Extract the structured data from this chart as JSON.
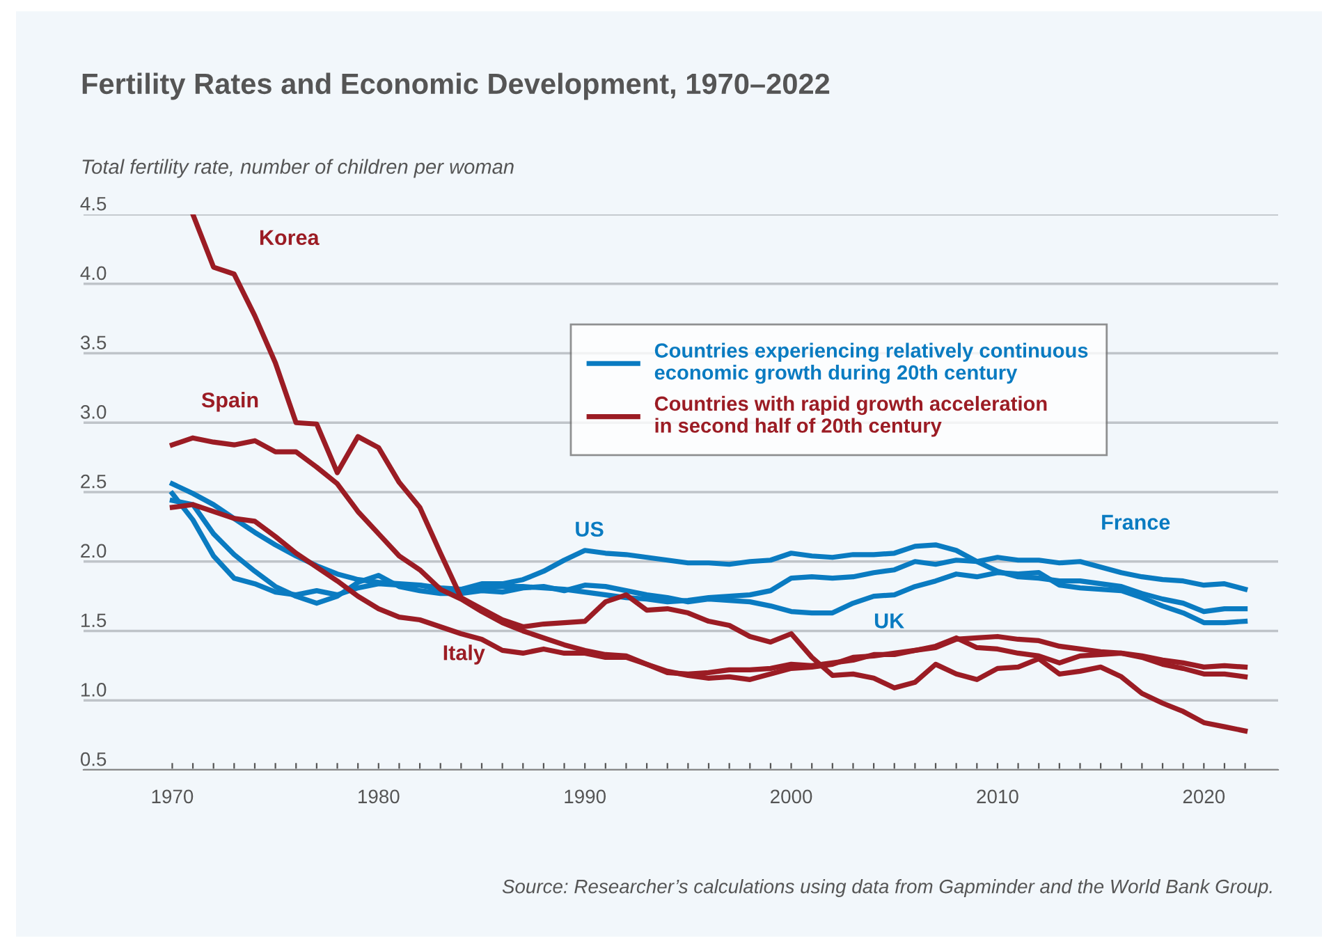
{
  "chart_data": {
    "type": "line",
    "title": "Fertility Rates and Economic Development, 1970–2022",
    "ylabel": "Total fertility rate, number of children per woman",
    "annotations": [
      "Countries experiencing relatively continuous economic growth during 20th century",
      "Countries with rapid growth acceleration in second half of 20th century",
      "Source: Researcher’s calculations using data from Gapminder and the World Bank Group."
    ],
    "x": [
      1970,
      1971,
      1972,
      1973,
      1974,
      1975,
      1976,
      1977,
      1978,
      1979,
      1980,
      1981,
      1982,
      1983,
      1984,
      1985,
      1986,
      1987,
      1988,
      1989,
      1990,
      1991,
      1992,
      1993,
      1994,
      1995,
      1996,
      1997,
      1998,
      1999,
      2000,
      2001,
      2002,
      2003,
      2004,
      2005,
      2006,
      2007,
      2008,
      2009,
      2010,
      2011,
      2012,
      2013,
      2014,
      2015,
      2016,
      2017,
      2018,
      2019,
      2020,
      2021,
      2022
    ],
    "series": [
      {
        "name": "US",
        "color": "#0a7bc1",
        "values": [
          2.49,
          2.3,
          2.04,
          1.88,
          1.84,
          1.78,
          1.76,
          1.79,
          1.76,
          1.81,
          1.84,
          1.83,
          1.83,
          1.8,
          1.8,
          1.84,
          1.84,
          1.87,
          1.93,
          2.01,
          2.08,
          2.06,
          2.05,
          2.03,
          2.01,
          1.99,
          1.99,
          1.98,
          2.0,
          2.01,
          2.06,
          2.04,
          2.03,
          2.05,
          2.05,
          2.06,
          2.11,
          2.12,
          2.08,
          2.0,
          1.93,
          1.89,
          1.88,
          1.86,
          1.86,
          1.84,
          1.82,
          1.77,
          1.73,
          1.7,
          1.64,
          1.66,
          1.66
        ]
      },
      {
        "name": "France",
        "color": "#0a7bc1",
        "values": [
          2.56,
          2.49,
          2.41,
          2.31,
          2.21,
          2.12,
          2.04,
          1.97,
          1.91,
          1.87,
          1.85,
          1.84,
          1.83,
          1.81,
          1.8,
          1.81,
          1.82,
          1.82,
          1.81,
          1.8,
          1.78,
          1.76,
          1.74,
          1.73,
          1.71,
          1.72,
          1.74,
          1.75,
          1.76,
          1.79,
          1.88,
          1.89,
          1.88,
          1.89,
          1.92,
          1.94,
          2.0,
          1.98,
          2.01,
          2.0,
          2.03,
          2.01,
          2.01,
          1.99,
          2.0,
          1.96,
          1.92,
          1.89,
          1.87,
          1.86,
          1.83,
          1.84,
          1.8
        ]
      },
      {
        "name": "UK",
        "color": "#0a7bc1",
        "values": [
          2.44,
          2.41,
          2.2,
          2.05,
          1.93,
          1.82,
          1.75,
          1.7,
          1.75,
          1.85,
          1.9,
          1.82,
          1.79,
          1.77,
          1.77,
          1.79,
          1.78,
          1.81,
          1.82,
          1.79,
          1.83,
          1.82,
          1.79,
          1.76,
          1.74,
          1.71,
          1.73,
          1.72,
          1.71,
          1.68,
          1.64,
          1.63,
          1.63,
          1.7,
          1.75,
          1.76,
          1.82,
          1.86,
          1.91,
          1.89,
          1.92,
          1.91,
          1.92,
          1.83,
          1.81,
          1.8,
          1.79,
          1.74,
          1.68,
          1.63,
          1.56,
          1.56,
          1.57
        ]
      },
      {
        "name": "Korea",
        "color": "#9b1c24",
        "values": [
          null,
          4.5,
          4.12,
          4.07,
          3.77,
          3.43,
          3.0,
          2.99,
          2.64,
          2.9,
          2.82,
          2.57,
          2.39,
          2.06,
          1.74,
          1.66,
          1.58,
          1.53,
          1.55,
          1.56,
          1.57,
          1.71,
          1.76,
          1.65,
          1.66,
          1.63,
          1.57,
          1.54,
          1.46,
          1.42,
          1.48,
          1.31,
          1.18,
          1.19,
          1.16,
          1.09,
          1.13,
          1.26,
          1.19,
          1.15,
          1.23,
          1.24,
          1.3,
          1.19,
          1.21,
          1.24,
          1.17,
          1.05,
          0.98,
          0.92,
          0.84,
          0.81,
          0.78
        ]
      },
      {
        "name": "Spain",
        "color": "#9b1c24",
        "values": [
          2.84,
          2.89,
          2.86,
          2.84,
          2.87,
          2.79,
          2.79,
          2.68,
          2.56,
          2.36,
          2.2,
          2.04,
          1.94,
          1.8,
          1.73,
          1.64,
          1.56,
          1.5,
          1.45,
          1.4,
          1.36,
          1.33,
          1.32,
          1.26,
          1.21,
          1.18,
          1.16,
          1.17,
          1.15,
          1.19,
          1.23,
          1.24,
          1.26,
          1.31,
          1.32,
          1.34,
          1.36,
          1.39,
          1.45,
          1.38,
          1.37,
          1.34,
          1.32,
          1.27,
          1.32,
          1.33,
          1.34,
          1.31,
          1.26,
          1.23,
          1.19,
          1.19,
          1.17
        ]
      },
      {
        "name": "Italy",
        "color": "#9b1c24",
        "values": [
          2.39,
          2.41,
          2.36,
          2.31,
          2.29,
          2.18,
          2.06,
          1.96,
          1.86,
          1.75,
          1.66,
          1.6,
          1.58,
          1.53,
          1.48,
          1.44,
          1.36,
          1.34,
          1.37,
          1.34,
          1.34,
          1.31,
          1.31,
          1.26,
          1.2,
          1.19,
          1.2,
          1.22,
          1.22,
          1.23,
          1.26,
          1.25,
          1.27,
          1.29,
          1.33,
          1.33,
          1.36,
          1.38,
          1.44,
          1.45,
          1.46,
          1.44,
          1.43,
          1.39,
          1.37,
          1.35,
          1.34,
          1.32,
          1.29,
          1.27,
          1.24,
          1.25,
          1.24
        ]
      }
    ],
    "xlim": [
      1965.7,
      2023.6
    ],
    "ylim": [
      0.5,
      4.5
    ],
    "xticks": [
      1970,
      {
        "value": 1971,
        "label": null
      },
      {
        "value": 1972,
        "label": null
      },
      {
        "value": 1973,
        "label": null
      },
      {
        "value": 1974,
        "label": null
      },
      {
        "value": 1975,
        "label": null
      },
      {
        "value": 1976,
        "label": null
      },
      {
        "value": 1977,
        "label": null
      },
      {
        "value": 1978,
        "label": null
      },
      {
        "value": 1979,
        "label": null
      },
      1980,
      {
        "value": 1981,
        "label": null
      },
      {
        "value": 1982,
        "label": null
      },
      {
        "value": 1983,
        "label": null
      },
      {
        "value": 1984,
        "label": null
      },
      {
        "value": 1985,
        "label": null
      },
      {
        "value": 1986,
        "label": null
      },
      {
        "value": 1987,
        "label": null
      },
      {
        "value": 1988,
        "label": null
      },
      {
        "value": 1989,
        "label": null
      },
      1990,
      {
        "value": 1991,
        "label": null
      },
      {
        "value": 1992,
        "label": null
      },
      {
        "value": 1993,
        "label": null
      },
      {
        "value": 1994,
        "label": null
      },
      {
        "value": 1995,
        "label": null
      },
      {
        "value": 1996,
        "label": null
      },
      {
        "value": 1997,
        "label": null
      },
      {
        "value": 1998,
        "label": null
      },
      {
        "value": 1999,
        "label": null
      },
      2000,
      {
        "value": 2001,
        "label": null
      },
      {
        "value": 2002,
        "label": null
      },
      {
        "value": 2003,
        "label": null
      },
      {
        "value": 2004,
        "label": null
      },
      {
        "value": 2005,
        "label": null
      },
      {
        "value": 2006,
        "label": null
      },
      {
        "value": 2007,
        "label": null
      },
      {
        "value": 2008,
        "label": null
      },
      {
        "value": 2009,
        "label": null
      },
      2010,
      {
        "value": 2011,
        "label": null
      },
      {
        "value": 2012,
        "label": null
      },
      {
        "value": 2013,
        "label": null
      },
      {
        "value": 2014,
        "label": null
      },
      {
        "value": 2015,
        "label": null
      },
      {
        "value": 2016,
        "label": null
      },
      {
        "value": 2017,
        "label": null
      },
      {
        "value": 2018,
        "label": null
      },
      {
        "value": 2019,
        "label": null
      },
      2020,
      {
        "value": 2021,
        "label": null
      },
      {
        "value": 2022,
        "label": null
      }
    ],
    "yticks": [
      {
        "value": 0.5,
        "label": "0.5"
      },
      {
        "value": 1.0,
        "label": "1.0"
      },
      {
        "value": 1.5,
        "label": "1.5"
      },
      {
        "value": 2.0,
        "label": "2.0"
      },
      {
        "value": 2.5,
        "label": "2.5"
      },
      {
        "value": 3.0,
        "label": "3.0"
      },
      {
        "value": 3.5,
        "label": "3.5"
      },
      {
        "value": 4.0,
        "label": "4.0"
      },
      {
        "value": 4.5,
        "label": "4.5"
      }
    ],
    "grid": "y",
    "legend": "top right",
    "marker": "none",
    "line_style": "solid"
  }
}
